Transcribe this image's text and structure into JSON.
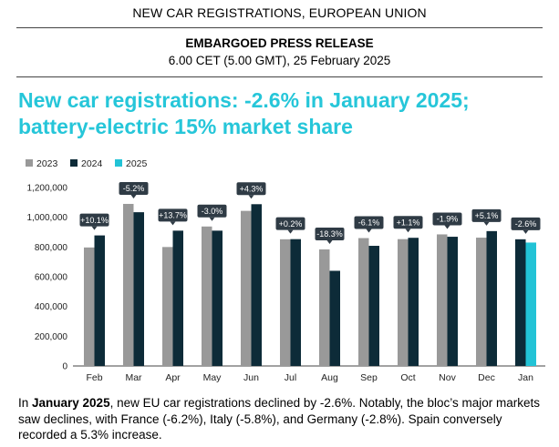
{
  "header": {
    "top_title": "NEW CAR REGISTRATIONS, EUROPEAN UNION",
    "embargo": "EMBARGOED PRESS RELEASE",
    "embargo_date": "6.00 CET (5.00 GMT), 25 February 2025"
  },
  "headline": {
    "line1": "New car registrations: -2.6% in January 2025;",
    "line2": "battery-electric 15% market share",
    "color": "#26C6D9"
  },
  "chart_data": {
    "type": "bar",
    "categories": [
      "Feb",
      "Mar",
      "Apr",
      "May",
      "Jun",
      "Jul",
      "Aug",
      "Sep",
      "Oct",
      "Nov",
      "Dec",
      "Jan"
    ],
    "series": [
      {
        "name": "2023",
        "color": "#999999",
        "values": [
          797000,
          1090000,
          800000,
          938000,
          1043000,
          852000,
          784000,
          860000,
          853000,
          885000,
          863000,
          null
        ]
      },
      {
        "name": "2024",
        "color": "#0D2B38",
        "values": [
          878000,
          1034000,
          910000,
          910000,
          1088000,
          853000,
          640000,
          808000,
          862000,
          869000,
          907000,
          852000
        ]
      },
      {
        "name": "2025",
        "color": "#22C3D6",
        "values": [
          null,
          null,
          null,
          null,
          null,
          null,
          null,
          null,
          null,
          null,
          null,
          830000
        ]
      }
    ],
    "change_labels": [
      "+10.1%",
      "-5.2%",
      "+13.7%",
      "-3.0%",
      "+4.3%",
      "+0.2%",
      "-18.3%",
      "-6.1%",
      "+1.1%",
      "-1.9%",
      "+5.1%",
      "-2.6%"
    ],
    "y_ticks": [
      "0",
      "200,000",
      "400,000",
      "600,000",
      "800,000",
      "1,000,000",
      "1,200,000"
    ],
    "ylim": [
      0,
      1200000
    ],
    "legend_position": "top-left",
    "title": "",
    "xlabel": "",
    "ylabel": ""
  },
  "paragraph": {
    "lead": "In ",
    "bold": "January 2025",
    "text": ", new EU car registrations declined by -2.6%. Notably, the bloc’s major markets saw declines, with France (-6.2%), Italy (-5.8%), and Germany (-2.8%). Spain conversely recorded a 5.3% increase."
  }
}
